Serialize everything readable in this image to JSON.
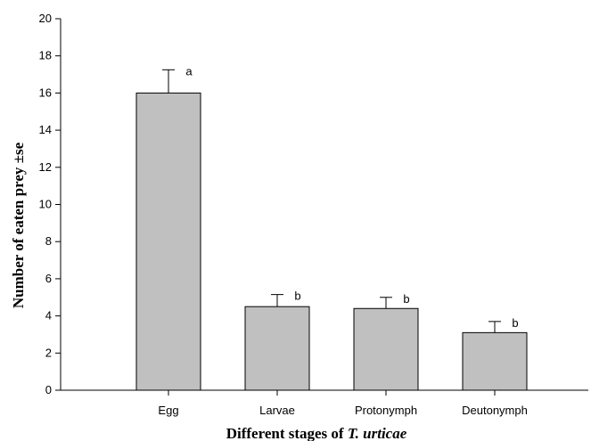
{
  "chart_data": {
    "type": "bar",
    "categories": [
      "Egg",
      "Larvae",
      "Protonymph",
      "Deutonymph"
    ],
    "values": [
      16.0,
      4.5,
      4.4,
      3.1
    ],
    "errors": [
      1.25,
      0.65,
      0.6,
      0.6
    ],
    "significance_letters": [
      "a",
      "b",
      "b",
      "b"
    ],
    "xlabel_prefix": "Different stages of ",
    "xlabel_species": "T. urticae",
    "ylabel": "Number of eaten prey ±se",
    "ylim": [
      0,
      20
    ],
    "yticks": [
      0,
      2,
      4,
      6,
      8,
      10,
      12,
      14,
      16,
      18,
      20
    ],
    "bar_color": "#c0c0c0",
    "grid": false,
    "legend": "none"
  }
}
